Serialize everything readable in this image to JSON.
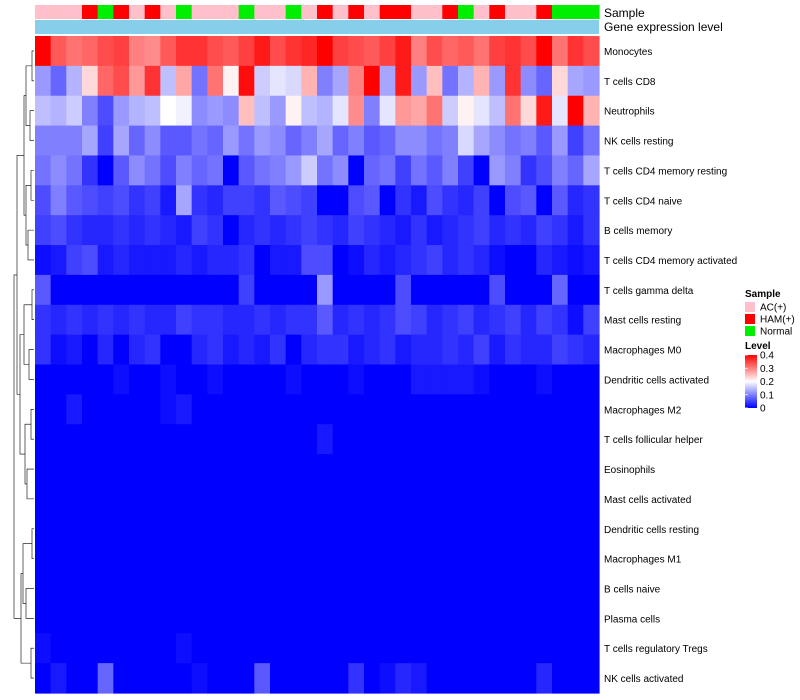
{
  "chart_data": {
    "type": "heatmap",
    "annotations": {
      "sample_label": "Sample",
      "level_label": "Gene expression level",
      "sample_groups": [
        "AC(+)",
        "AC(+)",
        "AC(+)",
        "HAM(+)",
        "Normal",
        "HAM(+)",
        "AC(+)",
        "HAM(+)",
        "AC(+)",
        "Normal",
        "AC(+)",
        "AC(+)",
        "AC(+)",
        "Normal",
        "AC(+)",
        "AC(+)",
        "Normal",
        "AC(+)",
        "HAM(+)",
        "AC(+)",
        "HAM(+)",
        "AC(+)",
        "HAM(+)",
        "HAM(+)",
        "AC(+)",
        "AC(+)",
        "HAM(+)",
        "Normal",
        "AC(+)",
        "HAM(+)",
        "AC(+)",
        "AC(+)",
        "HAM(+)",
        "Normal",
        "Normal",
        "Normal"
      ],
      "level_color": "#87ceeb"
    },
    "rows": [
      "Monocytes",
      "T cells CD8",
      "Neutrophils",
      "NK cells resting",
      "T cells CD4 memory resting",
      "T cells CD4 naive",
      "B cells memory",
      "T cells CD4 memory activated",
      "T cells gamma delta",
      "Mast cells resting",
      "Macrophages M0",
      "Dendritic cells activated",
      "Macrophages M2",
      "T cells follicular helper",
      "Eosinophils",
      "Mast cells activated",
      "Dendritic cells resting",
      "Macrophages M1",
      "B cells naive",
      "Plasma cells",
      "T cells regulatory  Tregs",
      "NK cells activated"
    ],
    "values": [
      [
        0.4,
        0.33,
        0.31,
        0.32,
        0.34,
        0.35,
        0.3,
        0.29,
        0.33,
        0.36,
        0.36,
        0.34,
        0.33,
        0.35,
        0.38,
        0.34,
        0.36,
        0.37,
        0.4,
        0.35,
        0.34,
        0.33,
        0.35,
        0.38,
        0.3,
        0.34,
        0.32,
        0.33,
        0.31,
        0.35,
        0.36,
        0.34,
        0.4,
        0.31,
        0.36,
        0.34
      ],
      [
        0.12,
        0.08,
        0.14,
        0.23,
        0.32,
        0.34,
        0.28,
        0.36,
        0.15,
        0.27,
        0.09,
        0.31,
        0.21,
        0.39,
        0.16,
        0.18,
        0.17,
        0.26,
        0.1,
        0.13,
        0.3,
        0.4,
        0.13,
        0.38,
        0.12,
        0.25,
        0.09,
        0.14,
        0.26,
        0.12,
        0.36,
        0.11,
        0.08,
        0.23,
        0.13,
        0.12
      ],
      [
        0.15,
        0.14,
        0.16,
        0.1,
        0.06,
        0.12,
        0.14,
        0.15,
        0.2,
        0.19,
        0.11,
        0.12,
        0.11,
        0.25,
        0.15,
        0.12,
        0.21,
        0.15,
        0.14,
        0.18,
        0.29,
        0.1,
        0.18,
        0.28,
        0.27,
        0.31,
        0.16,
        0.21,
        0.18,
        0.15,
        0.31,
        0.23,
        0.38,
        0.18,
        0.4,
        0.26
      ],
      [
        0.1,
        0.1,
        0.1,
        0.13,
        0.05,
        0.13,
        0.08,
        0.11,
        0.07,
        0.07,
        0.09,
        0.08,
        0.12,
        0.09,
        0.12,
        0.11,
        0.08,
        0.1,
        0.13,
        0.08,
        0.1,
        0.07,
        0.08,
        0.11,
        0.11,
        0.09,
        0.1,
        0.17,
        0.13,
        0.11,
        0.09,
        0.1,
        0.07,
        0.12,
        0.05,
        0.09
      ],
      [
        0.09,
        0.11,
        0.09,
        0.04,
        0.0,
        0.07,
        0.11,
        0.09,
        0.06,
        0.1,
        0.08,
        0.09,
        0.0,
        0.07,
        0.09,
        0.1,
        0.12,
        0.16,
        0.09,
        0.11,
        0.0,
        0.08,
        0.09,
        0.05,
        0.09,
        0.07,
        0.1,
        0.05,
        0.0,
        0.12,
        0.1,
        0.04,
        0.06,
        0.1,
        0.08,
        0.13
      ],
      [
        0.06,
        0.1,
        0.07,
        0.06,
        0.05,
        0.06,
        0.04,
        0.05,
        0.02,
        0.13,
        0.04,
        0.03,
        0.05,
        0.05,
        0.04,
        0.07,
        0.06,
        0.05,
        0.0,
        0.0,
        0.06,
        0.07,
        0.0,
        0.04,
        0.02,
        0.06,
        0.04,
        0.03,
        0.05,
        0.0,
        0.06,
        0.07,
        0.0,
        0.07,
        0.03,
        0.04
      ],
      [
        0.05,
        0.06,
        0.04,
        0.03,
        0.03,
        0.04,
        0.03,
        0.04,
        0.03,
        0.02,
        0.05,
        0.04,
        0.0,
        0.03,
        0.04,
        0.03,
        0.04,
        0.05,
        0.04,
        0.03,
        0.05,
        0.04,
        0.03,
        0.02,
        0.04,
        0.02,
        0.03,
        0.04,
        0.05,
        0.03,
        0.04,
        0.03,
        0.05,
        0.04,
        0.02,
        0.04
      ],
      [
        0.01,
        0.02,
        0.05,
        0.06,
        0.02,
        0.03,
        0.02,
        0.02,
        0.02,
        0.03,
        0.02,
        0.03,
        0.03,
        0.04,
        0.0,
        0.02,
        0.02,
        0.06,
        0.06,
        0.0,
        0.01,
        0.03,
        0.02,
        0.03,
        0.04,
        0.05,
        0.03,
        0.04,
        0.03,
        0.01,
        0.0,
        0.0,
        0.03,
        0.02,
        0.01,
        0.02
      ],
      [
        0.07,
        0.0,
        0.0,
        0.0,
        0.0,
        0.0,
        0.0,
        0.0,
        0.0,
        0.0,
        0.0,
        0.0,
        0.0,
        0.05,
        0.0,
        0.0,
        0.0,
        0.0,
        0.12,
        0.0,
        0.0,
        0.0,
        0.0,
        0.06,
        0.0,
        0.0,
        0.0,
        0.0,
        0.0,
        0.06,
        0.0,
        0.0,
        0.0,
        0.08,
        0.0,
        0.0
      ],
      [
        0.04,
        0.03,
        0.04,
        0.03,
        0.04,
        0.03,
        0.04,
        0.03,
        0.03,
        0.05,
        0.04,
        0.04,
        0.03,
        0.03,
        0.04,
        0.03,
        0.04,
        0.04,
        0.07,
        0.03,
        0.04,
        0.03,
        0.04,
        0.06,
        0.05,
        0.03,
        0.04,
        0.05,
        0.03,
        0.04,
        0.05,
        0.03,
        0.05,
        0.04,
        0.01,
        0.05
      ],
      [
        0.04,
        0.01,
        0.02,
        0.0,
        0.03,
        0.0,
        0.03,
        0.04,
        0.0,
        0.0,
        0.03,
        0.04,
        0.02,
        0.03,
        0.02,
        0.04,
        0.0,
        0.03,
        0.04,
        0.04,
        0.02,
        0.03,
        0.04,
        0.02,
        0.03,
        0.03,
        0.04,
        0.03,
        0.05,
        0.02,
        0.04,
        0.03,
        0.03,
        0.05,
        0.04,
        0.03
      ],
      [
        0.0,
        0.0,
        0.0,
        0.0,
        0.0,
        0.01,
        0.0,
        0.0,
        0.01,
        0.0,
        0.0,
        0.01,
        0.0,
        0.0,
        0.0,
        0.0,
        0.01,
        0.0,
        0.0,
        0.0,
        0.01,
        0.0,
        0.0,
        0.0,
        0.02,
        0.02,
        0.02,
        0.02,
        0.01,
        0.0,
        0.0,
        0.0,
        0.01,
        0.0,
        0.0,
        0.0
      ],
      [
        0.0,
        0.0,
        0.02,
        0.0,
        0.0,
        0.0,
        0.0,
        0.0,
        0.01,
        0.02,
        0.0,
        0.0,
        0.0,
        0.0,
        0.0,
        0.0,
        0.0,
        0.0,
        0.0,
        0.0,
        0.0,
        0.0,
        0.0,
        0.0,
        0.0,
        0.0,
        0.0,
        0.0,
        0.0,
        0.0,
        0.0,
        0.0,
        0.0,
        0.0,
        0.0,
        0.0
      ],
      [
        0.0,
        0.0,
        0.0,
        0.0,
        0.0,
        0.0,
        0.0,
        0.0,
        0.0,
        0.0,
        0.0,
        0.0,
        0.0,
        0.0,
        0.0,
        0.0,
        0.0,
        0.0,
        0.02,
        0.0,
        0.0,
        0.0,
        0.0,
        0.0,
        0.0,
        0.0,
        0.0,
        0.0,
        0.0,
        0.0,
        0.0,
        0.0,
        0.0,
        0.0,
        0.0,
        0.0
      ],
      [
        0.0,
        0.0,
        0.0,
        0.0,
        0.0,
        0.0,
        0.0,
        0.0,
        0.0,
        0.0,
        0.0,
        0.0,
        0.0,
        0.0,
        0.0,
        0.0,
        0.0,
        0.0,
        0.0,
        0.0,
        0.0,
        0.0,
        0.0,
        0.0,
        0.0,
        0.0,
        0.0,
        0.0,
        0.0,
        0.0,
        0.0,
        0.0,
        0.0,
        0.0,
        0.0,
        0.0
      ],
      [
        0.0,
        0.0,
        0.0,
        0.0,
        0.0,
        0.0,
        0.0,
        0.0,
        0.0,
        0.0,
        0.0,
        0.0,
        0.0,
        0.0,
        0.0,
        0.0,
        0.0,
        0.0,
        0.0,
        0.0,
        0.0,
        0.0,
        0.0,
        0.0,
        0.0,
        0.0,
        0.0,
        0.0,
        0.0,
        0.0,
        0.0,
        0.0,
        0.0,
        0.0,
        0.0,
        0.0
      ],
      [
        0.0,
        0.0,
        0.0,
        0.0,
        0.0,
        0.0,
        0.0,
        0.0,
        0.0,
        0.0,
        0.0,
        0.0,
        0.0,
        0.0,
        0.0,
        0.0,
        0.0,
        0.0,
        0.0,
        0.0,
        0.0,
        0.0,
        0.0,
        0.0,
        0.0,
        0.0,
        0.0,
        0.0,
        0.0,
        0.0,
        0.0,
        0.0,
        0.0,
        0.0,
        0.0,
        0.0
      ],
      [
        0.0,
        0.0,
        0.0,
        0.0,
        0.0,
        0.0,
        0.0,
        0.0,
        0.0,
        0.0,
        0.0,
        0.0,
        0.0,
        0.0,
        0.0,
        0.0,
        0.0,
        0.0,
        0.0,
        0.0,
        0.0,
        0.0,
        0.0,
        0.0,
        0.0,
        0.0,
        0.0,
        0.0,
        0.0,
        0.0,
        0.0,
        0.0,
        0.0,
        0.0,
        0.0,
        0.0
      ],
      [
        0.0,
        0.0,
        0.0,
        0.0,
        0.0,
        0.0,
        0.0,
        0.0,
        0.0,
        0.0,
        0.0,
        0.0,
        0.0,
        0.0,
        0.0,
        0.0,
        0.0,
        0.0,
        0.0,
        0.0,
        0.0,
        0.0,
        0.0,
        0.0,
        0.0,
        0.0,
        0.0,
        0.0,
        0.0,
        0.0,
        0.0,
        0.0,
        0.0,
        0.0,
        0.0,
        0.0
      ],
      [
        0.0,
        0.0,
        0.0,
        0.0,
        0.0,
        0.0,
        0.0,
        0.0,
        0.0,
        0.0,
        0.0,
        0.0,
        0.0,
        0.0,
        0.0,
        0.0,
        0.0,
        0.0,
        0.0,
        0.0,
        0.0,
        0.0,
        0.0,
        0.0,
        0.0,
        0.0,
        0.0,
        0.0,
        0.0,
        0.0,
        0.0,
        0.0,
        0.0,
        0.0,
        0.0,
        0.0
      ],
      [
        0.01,
        0.0,
        0.0,
        0.0,
        0.0,
        0.0,
        0.0,
        0.0,
        0.0,
        0.01,
        0.0,
        0.0,
        0.0,
        0.0,
        0.0,
        0.0,
        0.0,
        0.0,
        0.0,
        0.0,
        0.0,
        0.0,
        0.0,
        0.0,
        0.0,
        0.0,
        0.0,
        0.0,
        0.0,
        0.0,
        0.0,
        0.0,
        0.0,
        0.0,
        0.0,
        0.0
      ],
      [
        0.0,
        0.02,
        0.0,
        0.0,
        0.08,
        0.0,
        0.0,
        0.0,
        0.0,
        0.0,
        0.01,
        0.0,
        0.0,
        0.0,
        0.07,
        0.0,
        0.0,
        0.0,
        0.0,
        0.0,
        0.04,
        0.0,
        0.01,
        0.03,
        0.02,
        0.0,
        0.0,
        0.0,
        0.0,
        0.0,
        0.0,
        0.0,
        0.03,
        0.0,
        0.0,
        0.0
      ]
    ],
    "color_scale": {
      "min": 0,
      "mid": 0.2,
      "max": 0.4,
      "low": "#0000ff",
      "mid_color": "#ffffff",
      "high": "#ff0000"
    },
    "legend": {
      "sample_title": "Sample",
      "sample_entries": [
        {
          "label": "AC(+)",
          "color": "#ffc0cb"
        },
        {
          "label": "HAM(+)",
          "color": "#ff0000"
        },
        {
          "label": "Normal",
          "color": "#00ee00"
        }
      ],
      "level_title": "Level",
      "level_ticks": [
        "0.4",
        "0.3",
        "0.2",
        "0.1",
        "0"
      ]
    }
  }
}
